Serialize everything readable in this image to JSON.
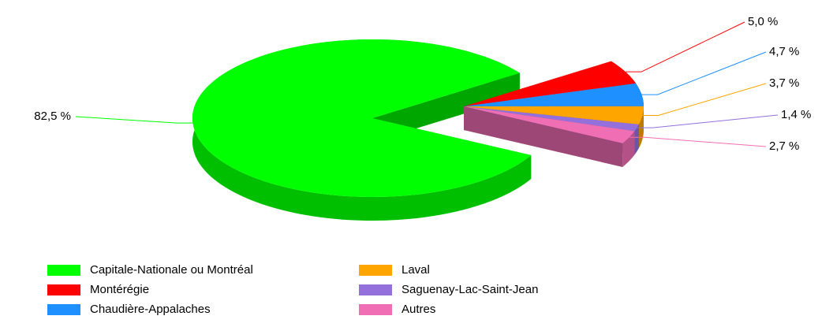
{
  "chart_data": {
    "type": "pie",
    "categories": [
      "Capitale-Nationale ou Montréal",
      "Montérégie",
      "Chaudière-Appalaches",
      "Laval",
      "Saguenay-Lac-Saint-Jean",
      "Autres"
    ],
    "values": [
      82.5,
      5.0,
      4.7,
      3.7,
      1.4,
      2.7
    ],
    "value_labels": [
      "82,5 %",
      "5,0 %",
      "4,7 %",
      "3,7 %",
      "1,4 %",
      "2,7 %"
    ],
    "colors": [
      "#00ff00",
      "#ff0000",
      "#1e90ff",
      "#ffa500",
      "#9370db",
      "#f06eb4"
    ],
    "legend": "bottom"
  }
}
